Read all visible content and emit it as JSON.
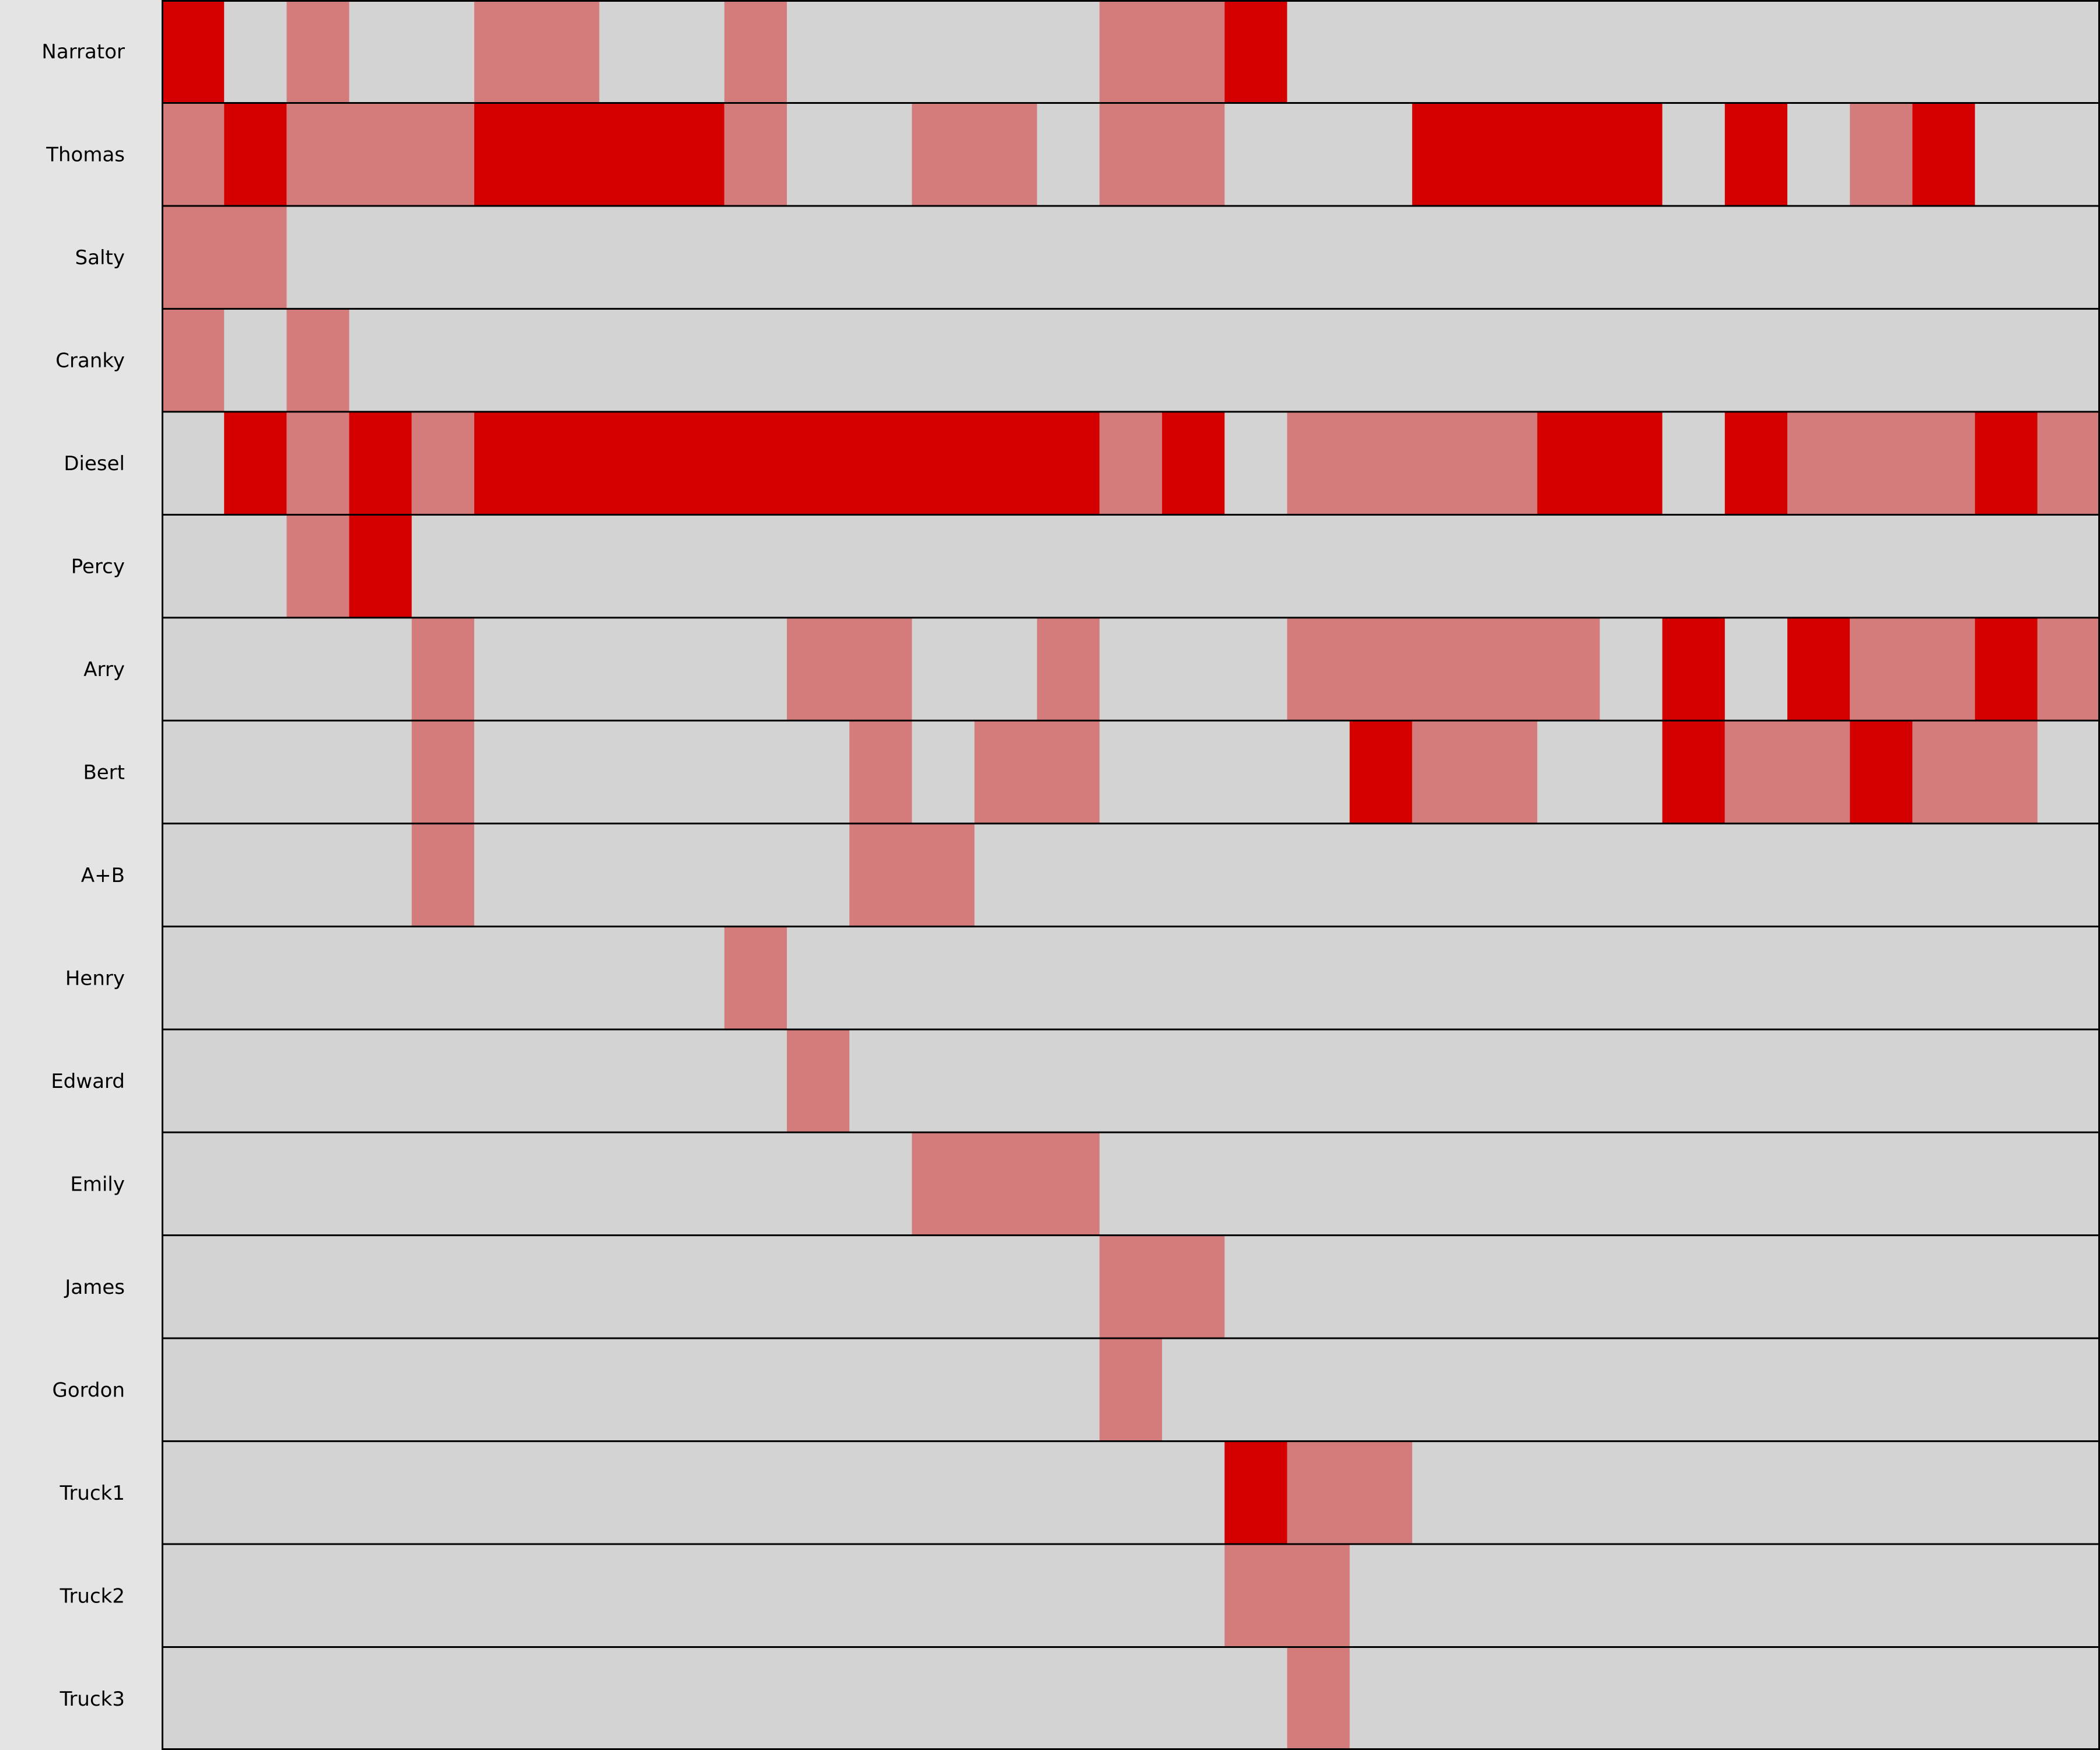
{
  "chart_data": {
    "type": "heatmap",
    "title": "",
    "xlabel": "",
    "ylabel": "",
    "x_range": [
      0,
      31
    ],
    "colors": {
      "background": "#e4e4e4",
      "empty": "#d3d3d3",
      "present": "#d47b7b",
      "speaking": "#d40000",
      "gridline": "#000000"
    },
    "levels": {
      "0": "empty",
      "1": "present",
      "2": "speaking"
    },
    "rows": [
      {
        "label": "Narrator",
        "cells": [
          2,
          0,
          1,
          0,
          0,
          1,
          1,
          0,
          0,
          1,
          0,
          0,
          0,
          0,
          0,
          1,
          1,
          2,
          0,
          0,
          0,
          0,
          0,
          0,
          0,
          0,
          0,
          0,
          0,
          0,
          0
        ]
      },
      {
        "label": "Thomas",
        "cells": [
          1,
          2,
          1,
          1,
          1,
          2,
          2,
          2,
          2,
          1,
          0,
          0,
          1,
          1,
          0,
          1,
          1,
          0,
          0,
          0,
          2,
          2,
          2,
          2,
          0,
          2,
          0,
          1,
          2,
          0,
          0
        ]
      },
      {
        "label": "Salty",
        "cells": [
          1,
          1,
          0,
          0,
          0,
          0,
          0,
          0,
          0,
          0,
          0,
          0,
          0,
          0,
          0,
          0,
          0,
          0,
          0,
          0,
          0,
          0,
          0,
          0,
          0,
          0,
          0,
          0,
          0,
          0,
          0
        ]
      },
      {
        "label": "Cranky",
        "cells": [
          1,
          0,
          1,
          0,
          0,
          0,
          0,
          0,
          0,
          0,
          0,
          0,
          0,
          0,
          0,
          0,
          0,
          0,
          0,
          0,
          0,
          0,
          0,
          0,
          0,
          0,
          0,
          0,
          0,
          0,
          0
        ]
      },
      {
        "label": "Diesel",
        "cells": [
          0,
          2,
          1,
          2,
          1,
          2,
          2,
          2,
          2,
          2,
          2,
          2,
          2,
          2,
          2,
          1,
          2,
          0,
          1,
          1,
          1,
          1,
          2,
          2,
          0,
          2,
          1,
          1,
          1,
          2,
          1
        ]
      },
      {
        "label": "Percy",
        "cells": [
          0,
          0,
          1,
          2,
          0,
          0,
          0,
          0,
          0,
          0,
          0,
          0,
          0,
          0,
          0,
          0,
          0,
          0,
          0,
          0,
          0,
          0,
          0,
          0,
          0,
          0,
          0,
          0,
          0,
          0,
          0
        ]
      },
      {
        "label": "Arry",
        "cells": [
          0,
          0,
          0,
          0,
          1,
          0,
          0,
          0,
          0,
          0,
          1,
          1,
          0,
          0,
          1,
          0,
          0,
          0,
          1,
          1,
          1,
          1,
          1,
          0,
          2,
          0,
          2,
          1,
          1,
          2,
          1
        ]
      },
      {
        "label": "Bert",
        "cells": [
          0,
          0,
          0,
          0,
          1,
          0,
          0,
          0,
          0,
          0,
          0,
          1,
          0,
          1,
          1,
          0,
          0,
          0,
          0,
          2,
          1,
          1,
          0,
          0,
          2,
          1,
          1,
          2,
          1,
          1,
          0
        ]
      },
      {
        "label": "A+B",
        "cells": [
          0,
          0,
          0,
          0,
          1,
          0,
          0,
          0,
          0,
          0,
          0,
          1,
          1,
          0,
          0,
          0,
          0,
          0,
          0,
          0,
          0,
          0,
          0,
          0,
          0,
          0,
          0,
          0,
          0,
          0,
          0
        ]
      },
      {
        "label": "Henry",
        "cells": [
          0,
          0,
          0,
          0,
          0,
          0,
          0,
          0,
          0,
          1,
          0,
          0,
          0,
          0,
          0,
          0,
          0,
          0,
          0,
          0,
          0,
          0,
          0,
          0,
          0,
          0,
          0,
          0,
          0,
          0,
          0
        ]
      },
      {
        "label": "Edward",
        "cells": [
          0,
          0,
          0,
          0,
          0,
          0,
          0,
          0,
          0,
          0,
          1,
          0,
          0,
          0,
          0,
          0,
          0,
          0,
          0,
          0,
          0,
          0,
          0,
          0,
          0,
          0,
          0,
          0,
          0,
          0,
          0
        ]
      },
      {
        "label": "Emily",
        "cells": [
          0,
          0,
          0,
          0,
          0,
          0,
          0,
          0,
          0,
          0,
          0,
          0,
          1,
          1,
          1,
          0,
          0,
          0,
          0,
          0,
          0,
          0,
          0,
          0,
          0,
          0,
          0,
          0,
          0,
          0,
          0
        ]
      },
      {
        "label": "James",
        "cells": [
          0,
          0,
          0,
          0,
          0,
          0,
          0,
          0,
          0,
          0,
          0,
          0,
          0,
          0,
          0,
          1,
          1,
          0,
          0,
          0,
          0,
          0,
          0,
          0,
          0,
          0,
          0,
          0,
          0,
          0,
          0
        ]
      },
      {
        "label": "Gordon",
        "cells": [
          0,
          0,
          0,
          0,
          0,
          0,
          0,
          0,
          0,
          0,
          0,
          0,
          0,
          0,
          0,
          1,
          0,
          0,
          0,
          0,
          0,
          0,
          0,
          0,
          0,
          0,
          0,
          0,
          0,
          0,
          0
        ]
      },
      {
        "label": "Truck1",
        "cells": [
          0,
          0,
          0,
          0,
          0,
          0,
          0,
          0,
          0,
          0,
          0,
          0,
          0,
          0,
          0,
          0,
          0,
          2,
          1,
          1,
          0,
          0,
          0,
          0,
          0,
          0,
          0,
          0,
          0,
          0,
          0
        ]
      },
      {
        "label": "Truck2",
        "cells": [
          0,
          0,
          0,
          0,
          0,
          0,
          0,
          0,
          0,
          0,
          0,
          0,
          0,
          0,
          0,
          0,
          0,
          1,
          1,
          0,
          0,
          0,
          0,
          0,
          0,
          0,
          0,
          0,
          0,
          0,
          0
        ]
      },
      {
        "label": "Truck3",
        "cells": [
          0,
          0,
          0,
          0,
          0,
          0,
          0,
          0,
          0,
          0,
          0,
          0,
          0,
          0,
          0,
          0,
          0,
          0,
          1,
          0,
          0,
          0,
          0,
          0,
          0,
          0,
          0,
          0,
          0,
          0,
          0
        ]
      }
    ],
    "legend": null,
    "grid": true
  }
}
